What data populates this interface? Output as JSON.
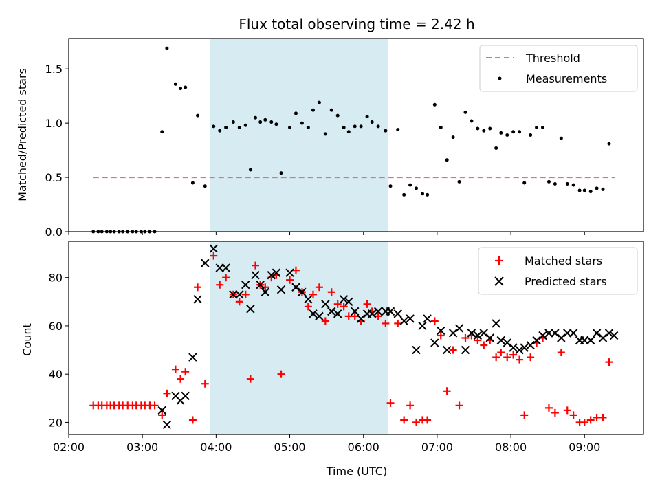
{
  "colors": {
    "threshold": "#ff6666",
    "measurement": "#000000",
    "matched": "#ff0000",
    "predicted": "#000000",
    "highlight": "#add8e6"
  },
  "chart_data": [
    {
      "type": "scatter",
      "title": "Flux total observing time = 2.42 h",
      "xlabel": "",
      "ylabel": "Matched/Predicted stars",
      "x_unit": "time (UTC, hours)",
      "xlim": [
        "02:00",
        "09:48"
      ],
      "xticks": [
        "02:00",
        "03:00",
        "04:00",
        "05:00",
        "06:00",
        "07:00",
        "08:00",
        "09:00"
      ],
      "ylim": [
        0,
        1.78
      ],
      "yticks": [
        "0.0",
        "0.5",
        "1.0",
        "1.5"
      ],
      "grid": false,
      "legend_position": "upper right",
      "highlight_span": {
        "start": "03:55",
        "end": "06:20"
      },
      "threshold": {
        "name": "Threshold",
        "y": 0.5,
        "x": [
          "02:20",
          "09:25"
        ]
      },
      "series": [
        {
          "name": "Measurements",
          "points": [
            [
              "02:20",
              0
            ],
            [
              "02:24",
              0
            ],
            [
              "02:27",
              0
            ],
            [
              "02:31",
              0
            ],
            [
              "02:34",
              0
            ],
            [
              "02:37",
              0
            ],
            [
              "02:41",
              0
            ],
            [
              "02:44",
              0
            ],
            [
              "02:48",
              0
            ],
            [
              "02:52",
              0
            ],
            [
              "02:55",
              0
            ],
            [
              "02:59",
              0
            ],
            [
              "03:02",
              0
            ],
            [
              "03:06",
              0
            ],
            [
              "03:10",
              0
            ],
            [
              "03:16",
              0.92
            ],
            [
              "03:20",
              1.69
            ],
            [
              "03:27",
              1.36
            ],
            [
              "03:31",
              1.32
            ],
            [
              "03:35",
              1.33
            ],
            [
              "03:41",
              0.45
            ],
            [
              "03:45",
              1.07
            ],
            [
              "03:51",
              0.42
            ],
            [
              "03:58",
              0.97
            ],
            [
              "04:03",
              0.93
            ],
            [
              "04:08",
              0.96
            ],
            [
              "04:14",
              1.01
            ],
            [
              "04:19",
              0.96
            ],
            [
              "04:24",
              0.98
            ],
            [
              "04:28",
              0.57
            ],
            [
              "04:32",
              1.05
            ],
            [
              "04:36",
              1.01
            ],
            [
              "04:40",
              1.03
            ],
            [
              "04:45",
              1.01
            ],
            [
              "04:49",
              0.99
            ],
            [
              "04:53",
              0.54
            ],
            [
              "05:00",
              0.96
            ],
            [
              "05:05",
              1.09
            ],
            [
              "05:10",
              1.0
            ],
            [
              "05:15",
              0.96
            ],
            [
              "05:19",
              1.12
            ],
            [
              "05:24",
              1.19
            ],
            [
              "05:29",
              0.9
            ],
            [
              "05:34",
              1.12
            ],
            [
              "05:39",
              1.07
            ],
            [
              "05:44",
              0.96
            ],
            [
              "05:48",
              0.92
            ],
            [
              "05:53",
              0.97
            ],
            [
              "05:58",
              0.97
            ],
            [
              "06:03",
              1.06
            ],
            [
              "06:07",
              1.01
            ],
            [
              "06:12",
              0.97
            ],
            [
              "06:18",
              0.93
            ],
            [
              "06:22",
              0.42
            ],
            [
              "06:28",
              0.94
            ],
            [
              "06:33",
              0.34
            ],
            [
              "06:38",
              0.43
            ],
            [
              "06:43",
              0.4
            ],
            [
              "06:48",
              0.35
            ],
            [
              "06:52",
              0.34
            ],
            [
              "06:58",
              1.17
            ],
            [
              "07:03",
              0.96
            ],
            [
              "07:08",
              0.66
            ],
            [
              "07:13",
              0.87
            ],
            [
              "07:18",
              0.46
            ],
            [
              "07:23",
              1.1
            ],
            [
              "07:28",
              1.02
            ],
            [
              "07:33",
              0.95
            ],
            [
              "07:38",
              0.93
            ],
            [
              "07:43",
              0.95
            ],
            [
              "07:48",
              0.77
            ],
            [
              "07:52",
              0.91
            ],
            [
              "07:57",
              0.89
            ],
            [
              "08:02",
              0.92
            ],
            [
              "08:07",
              0.92
            ],
            [
              "08:11",
              0.45
            ],
            [
              "08:16",
              0.89
            ],
            [
              "08:21",
              0.96
            ],
            [
              "08:26",
              0.96
            ],
            [
              "08:31",
              0.46
            ],
            [
              "08:36",
              0.44
            ],
            [
              "08:41",
              0.86
            ],
            [
              "08:46",
              0.44
            ],
            [
              "08:51",
              0.43
            ],
            [
              "08:56",
              0.38
            ],
            [
              "09:00",
              0.38
            ],
            [
              "09:05",
              0.37
            ],
            [
              "09:10",
              0.4
            ],
            [
              "09:15",
              0.39
            ],
            [
              "09:20",
              0.81
            ]
          ]
        }
      ]
    },
    {
      "type": "scatter",
      "title": "",
      "xlabel": "Time (UTC)",
      "ylabel": "Count",
      "x_unit": "time (UTC, hours)",
      "xlim": [
        "02:00",
        "09:48"
      ],
      "xticks": [
        "02:00",
        "03:00",
        "04:00",
        "05:00",
        "06:00",
        "07:00",
        "08:00",
        "09:00"
      ],
      "ylim": [
        15,
        95
      ],
      "yticks": [
        "20",
        "40",
        "60",
        "80"
      ],
      "grid": false,
      "legend_position": "upper right",
      "highlight_span": {
        "start": "03:55",
        "end": "06:20"
      },
      "series": [
        {
          "name": "Matched stars",
          "points": [
            [
              "02:20",
              27
            ],
            [
              "02:24",
              27
            ],
            [
              "02:27",
              27
            ],
            [
              "02:31",
              27
            ],
            [
              "02:34",
              27
            ],
            [
              "02:37",
              27
            ],
            [
              "02:41",
              27
            ],
            [
              "02:44",
              27
            ],
            [
              "02:48",
              27
            ],
            [
              "02:52",
              27
            ],
            [
              "02:55",
              27
            ],
            [
              "02:59",
              27
            ],
            [
              "03:02",
              27
            ],
            [
              "03:06",
              27
            ],
            [
              "03:10",
              27
            ],
            [
              "03:16",
              23
            ],
            [
              "03:20",
              32
            ],
            [
              "03:27",
              42
            ],
            [
              "03:31",
              38
            ],
            [
              "03:35",
              41
            ],
            [
              "03:41",
              21
            ],
            [
              "03:45",
              76
            ],
            [
              "03:51",
              36
            ],
            [
              "03:58",
              89
            ],
            [
              "04:03",
              77
            ],
            [
              "04:08",
              80
            ],
            [
              "04:14",
              73
            ],
            [
              "04:19",
              70
            ],
            [
              "04:24",
              73
            ],
            [
              "04:28",
              38
            ],
            [
              "04:32",
              85
            ],
            [
              "04:36",
              77
            ],
            [
              "04:40",
              76
            ],
            [
              "04:45",
              80
            ],
            [
              "04:49",
              81
            ],
            [
              "04:53",
              40
            ],
            [
              "05:00",
              79
            ],
            [
              "05:05",
              83
            ],
            [
              "05:10",
              74
            ],
            [
              "05:15",
              68
            ],
            [
              "05:19",
              73
            ],
            [
              "05:24",
              76
            ],
            [
              "05:29",
              62
            ],
            [
              "05:34",
              74
            ],
            [
              "05:39",
              69
            ],
            [
              "05:44",
              68
            ],
            [
              "05:48",
              64
            ],
            [
              "05:53",
              64
            ],
            [
              "05:58",
              62
            ],
            [
              "06:03",
              69
            ],
            [
              "06:07",
              66
            ],
            [
              "06:12",
              64
            ],
            [
              "06:18",
              61
            ],
            [
              "06:22",
              28
            ],
            [
              "06:28",
              61
            ],
            [
              "06:33",
              21
            ],
            [
              "06:38",
              27
            ],
            [
              "06:43",
              20
            ],
            [
              "06:48",
              21
            ],
            [
              "06:52",
              21
            ],
            [
              "06:58",
              62
            ],
            [
              "07:03",
              56
            ],
            [
              "07:08",
              33
            ],
            [
              "07:13",
              50
            ],
            [
              "07:18",
              27
            ],
            [
              "07:23",
              55
            ],
            [
              "07:28",
              56
            ],
            [
              "07:33",
              54
            ],
            [
              "07:38",
              52
            ],
            [
              "07:43",
              54
            ],
            [
              "07:48",
              47
            ],
            [
              "07:52",
              49
            ],
            [
              "07:57",
              47
            ],
            [
              "08:02",
              48
            ],
            [
              "08:07",
              46
            ],
            [
              "08:11",
              23
            ],
            [
              "08:16",
              47
            ],
            [
              "08:21",
              53
            ],
            [
              "08:26",
              55
            ],
            [
              "08:31",
              26
            ],
            [
              "08:36",
              24
            ],
            [
              "08:41",
              49
            ],
            [
              "08:46",
              25
            ],
            [
              "08:51",
              23
            ],
            [
              "08:56",
              20
            ],
            [
              "09:00",
              20
            ],
            [
              "09:05",
              21
            ],
            [
              "09:10",
              22
            ],
            [
              "09:15",
              22
            ],
            [
              "09:20",
              45
            ]
          ]
        },
        {
          "name": "Predicted stars",
          "points": [
            [
              "03:16",
              25
            ],
            [
              "03:20",
              19
            ],
            [
              "03:27",
              31
            ],
            [
              "03:31",
              29
            ],
            [
              "03:35",
              31
            ],
            [
              "03:41",
              47
            ],
            [
              "03:45",
              71
            ],
            [
              "03:51",
              86
            ],
            [
              "03:58",
              92
            ],
            [
              "04:03",
              84
            ],
            [
              "04:08",
              84
            ],
            [
              "04:14",
              73
            ],
            [
              "04:19",
              73
            ],
            [
              "04:24",
              77
            ],
            [
              "04:28",
              67
            ],
            [
              "04:32",
              81
            ],
            [
              "04:36",
              77
            ],
            [
              "04:40",
              74
            ],
            [
              "04:45",
              81
            ],
            [
              "04:49",
              82
            ],
            [
              "04:53",
              75
            ],
            [
              "05:00",
              82
            ],
            [
              "05:05",
              76
            ],
            [
              "05:10",
              74
            ],
            [
              "05:15",
              71
            ],
            [
              "05:19",
              65
            ],
            [
              "05:24",
              64
            ],
            [
              "05:29",
              69
            ],
            [
              "05:34",
              66
            ],
            [
              "05:39",
              65
            ],
            [
              "05:44",
              71
            ],
            [
              "05:48",
              70
            ],
            [
              "05:53",
              66
            ],
            [
              "05:58",
              63
            ],
            [
              "06:03",
              65
            ],
            [
              "06:07",
              65
            ],
            [
              "06:12",
              66
            ],
            [
              "06:18",
              66
            ],
            [
              "06:22",
              66
            ],
            [
              "06:28",
              65
            ],
            [
              "06:33",
              62
            ],
            [
              "06:38",
              63
            ],
            [
              "06:43",
              50
            ],
            [
              "06:48",
              60
            ],
            [
              "06:52",
              63
            ],
            [
              "06:58",
              53
            ],
            [
              "07:03",
              58
            ],
            [
              "07:08",
              50
            ],
            [
              "07:13",
              57
            ],
            [
              "07:18",
              59
            ],
            [
              "07:23",
              50
            ],
            [
              "07:28",
              57
            ],
            [
              "07:33",
              56
            ],
            [
              "07:38",
              57
            ],
            [
              "07:43",
              55
            ],
            [
              "07:48",
              61
            ],
            [
              "07:52",
              54
            ],
            [
              "07:57",
              53
            ],
            [
              "08:02",
              51
            ],
            [
              "08:07",
              50
            ],
            [
              "08:11",
              51
            ],
            [
              "08:16",
              52
            ],
            [
              "08:21",
              54
            ],
            [
              "08:26",
              56
            ],
            [
              "08:31",
              57
            ],
            [
              "08:36",
              57
            ],
            [
              "08:41",
              55
            ],
            [
              "08:46",
              57
            ],
            [
              "08:51",
              57
            ],
            [
              "08:56",
              54
            ],
            [
              "09:00",
              54
            ],
            [
              "09:05",
              54
            ],
            [
              "09:10",
              57
            ],
            [
              "09:15",
              55
            ],
            [
              "09:20",
              57
            ],
            [
              "09:24",
              56
            ]
          ]
        }
      ]
    }
  ]
}
